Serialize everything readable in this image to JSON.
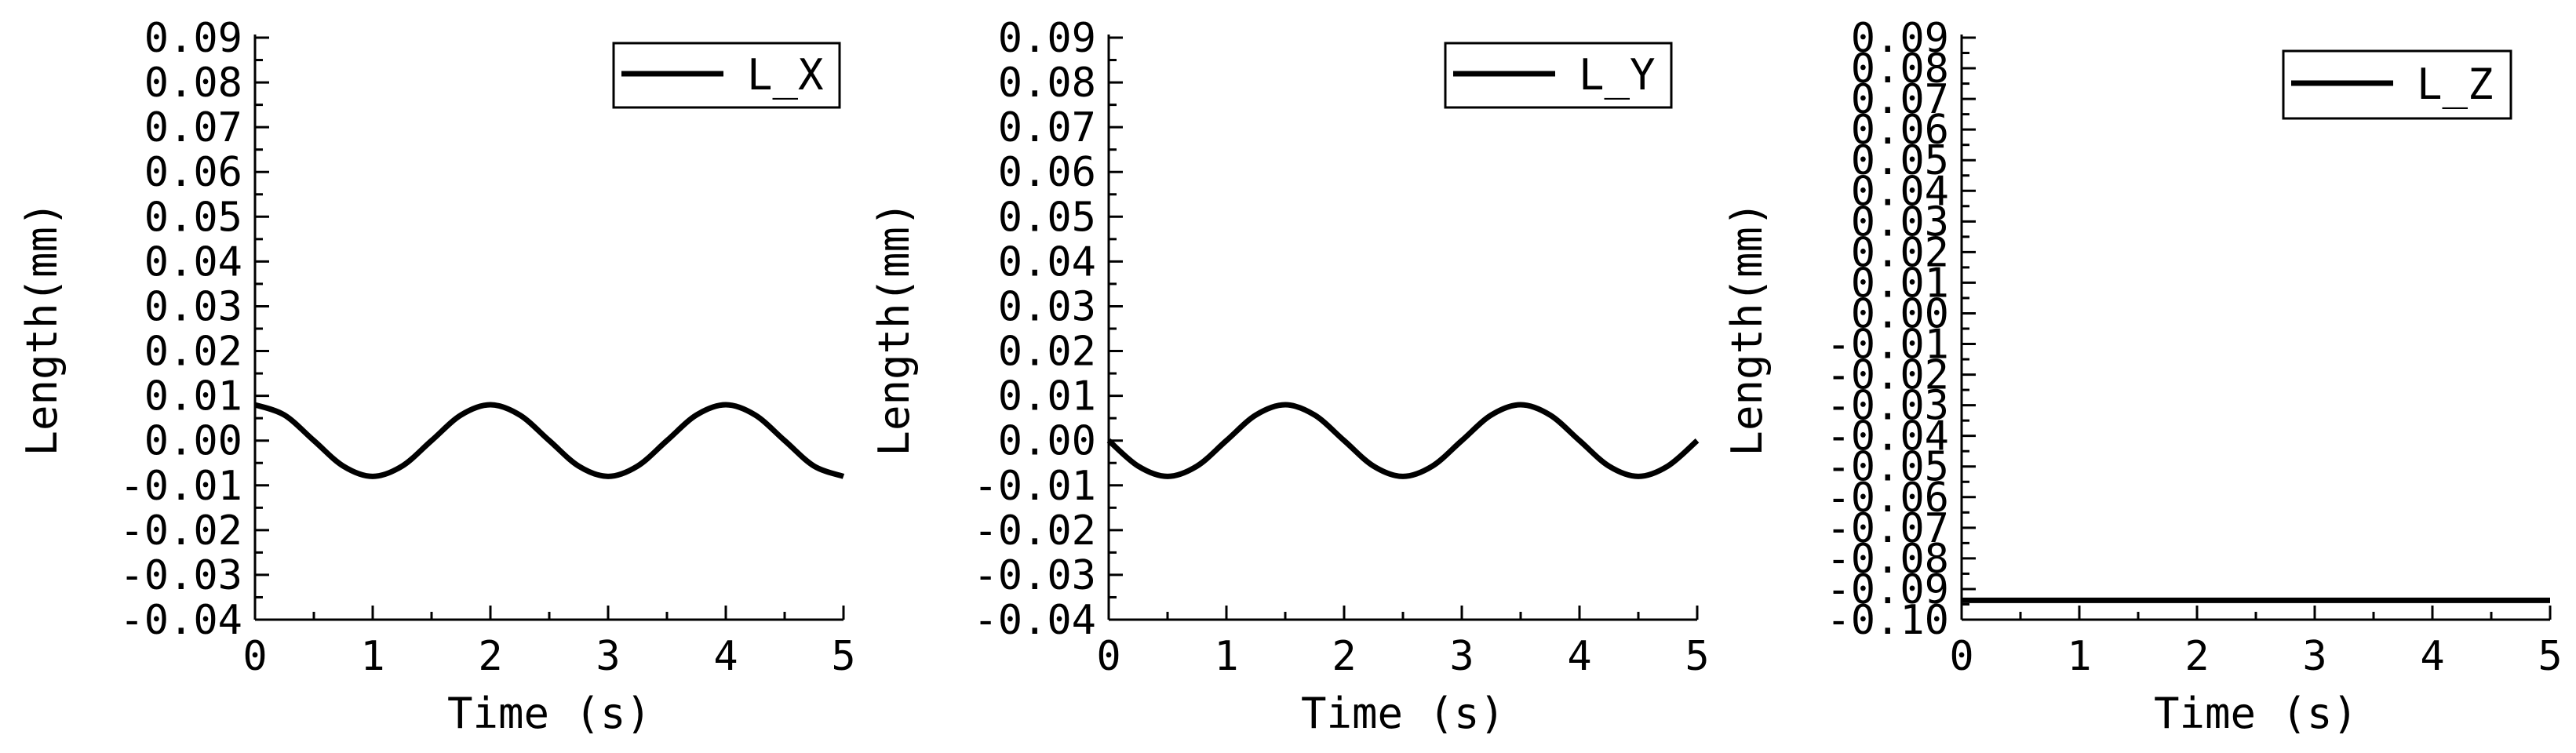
{
  "chart_data": [
    {
      "type": "line",
      "xlabel": "Time (s)",
      "ylabel": "Length(mm)",
      "xlim": [
        0,
        5
      ],
      "ylim": [
        -0.04,
        0.09
      ],
      "xticks": [
        "0",
        "1",
        "2",
        "3",
        "4",
        "5"
      ],
      "yticks": [
        "-0.04",
        "-0.03",
        "-0.02",
        "-0.01",
        "0.00",
        "0.01",
        "0.02",
        "0.03",
        "0.04",
        "0.05",
        "0.06",
        "0.07",
        "0.08",
        "0.09"
      ],
      "legend_position": "top-right",
      "series": [
        {
          "name": "L_X",
          "color": "#000000",
          "x": [
            0,
            0.25,
            0.5,
            0.75,
            1,
            1.25,
            1.5,
            1.75,
            2,
            2.25,
            2.5,
            2.75,
            3,
            3.25,
            3.5,
            3.75,
            4,
            4.25,
            4.5,
            4.75,
            5
          ],
          "y": [
            0.008,
            0.0057,
            0,
            -0.0057,
            -0.008,
            -0.0057,
            0,
            0.0057,
            0.008,
            0.0057,
            0,
            -0.0057,
            -0.008,
            -0.0057,
            0,
            0.0057,
            0.008,
            0.0057,
            0,
            -0.0057,
            -0.008
          ]
        }
      ]
    },
    {
      "type": "line",
      "xlabel": "Time (s)",
      "ylabel": "Length(mm)",
      "xlim": [
        0,
        5
      ],
      "ylim": [
        -0.04,
        0.09
      ],
      "xticks": [
        "0",
        "1",
        "2",
        "3",
        "4",
        "5"
      ],
      "yticks": [
        "-0.04",
        "-0.03",
        "-0.02",
        "-0.01",
        "0.00",
        "0.01",
        "0.02",
        "0.03",
        "0.04",
        "0.05",
        "0.06",
        "0.07",
        "0.08",
        "0.09"
      ],
      "legend_position": "top-right",
      "series": [
        {
          "name": "L_Y",
          "color": "#000000",
          "x": [
            0,
            0.25,
            0.5,
            0.75,
            1,
            1.25,
            1.5,
            1.75,
            2,
            2.25,
            2.5,
            2.75,
            3,
            3.25,
            3.5,
            3.75,
            4,
            4.25,
            4.5,
            4.75,
            5
          ],
          "y": [
            0,
            -0.0057,
            -0.008,
            -0.0057,
            0,
            0.0057,
            0.008,
            0.0057,
            0,
            -0.0057,
            -0.008,
            -0.0057,
            0,
            0.0057,
            0.008,
            0.0057,
            0,
            -0.0057,
            -0.008,
            -0.0057,
            0
          ]
        }
      ]
    },
    {
      "type": "line",
      "xlabel": "Time (s)",
      "ylabel": "Length(mm)",
      "xlim": [
        0,
        5
      ],
      "ylim": [
        -0.1,
        0.09
      ],
      "xticks": [
        "0",
        "1",
        "2",
        "3",
        "4",
        "5"
      ],
      "yticks": [
        "-0.10",
        "-0.09",
        "-0.08",
        "-0.07",
        "-0.06",
        "-0.05",
        "-0.04",
        "-0.03",
        "-0.02",
        "-0.01",
        "0.00",
        "0.01",
        "0.02",
        "0.03",
        "0.04",
        "0.05",
        "0.06",
        "0.07",
        "0.08",
        "0.09"
      ],
      "legend_position": "top-right",
      "series": [
        {
          "name": "L_Z",
          "color": "#000000",
          "x": [
            0,
            5
          ],
          "y": [
            -0.0937,
            -0.0937
          ]
        }
      ]
    }
  ]
}
